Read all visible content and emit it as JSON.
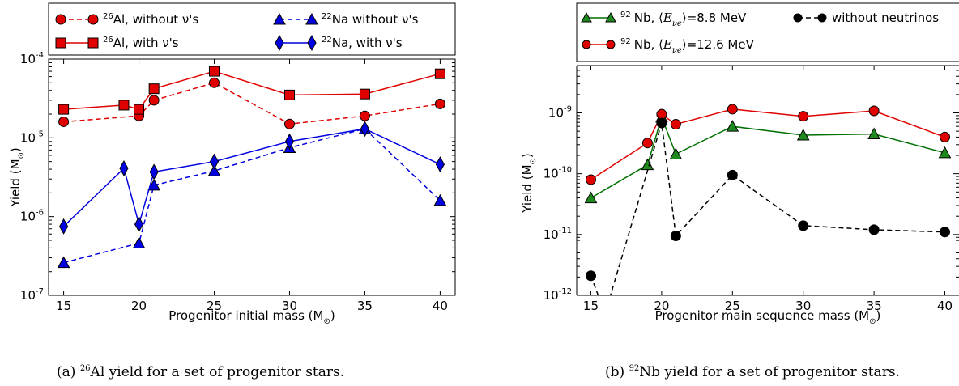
{
  "chart_data": [
    {
      "type": "line",
      "panel": "a",
      "xlabel": "Progenitor initial mass (M",
      "xlabel_sub": "⊙",
      "xlabel_close": ")",
      "ylabel": "Yield (M",
      "ylabel_sub": "⊙",
      "ylabel_close": ")",
      "yscale": "log",
      "xlim": [
        14,
        41
      ],
      "ylim": [
        1e-07,
        0.0001
      ],
      "xticks": [
        "15",
        "20",
        "25",
        "30",
        "35",
        "40"
      ],
      "yticks": [
        {
          "base": "10",
          "exp": "-7",
          "value": 1e-07
        },
        {
          "base": "10",
          "exp": "-6",
          "value": 1e-06
        },
        {
          "base": "10",
          "exp": "-5",
          "value": 1e-05
        },
        {
          "base": "10",
          "exp": "-4",
          "value": 0.0001
        }
      ],
      "legend_placement": "top",
      "series": [
        {
          "iso": "26",
          "name": "Al, without ν's",
          "color": "#e00000",
          "fill": "#e00000",
          "dash": true,
          "marker": "circle",
          "x": [
            15,
            20,
            21,
            25,
            30,
            35,
            40
          ],
          "y": [
            1.6e-05,
            1.9e-05,
            3e-05,
            5e-05,
            1.5e-05,
            1.9e-05,
            2.7e-05
          ]
        },
        {
          "iso": "26",
          "name": "Al, with ν's",
          "color": "#e00000",
          "fill": "#e00000",
          "dash": false,
          "marker": "square",
          "x": [
            15,
            19,
            20,
            21,
            25,
            30,
            35,
            40
          ],
          "y": [
            2.3e-05,
            2.6e-05,
            2.3e-05,
            4.2e-05,
            7e-05,
            3.5e-05,
            3.6e-05,
            6.5e-05
          ]
        },
        {
          "iso": "22",
          "name": "Na without ν's",
          "color": "#0000e0",
          "fill": "#0000e0",
          "dash": true,
          "marker": "triangle",
          "x": [
            15,
            20,
            21,
            25,
            30,
            35,
            40
          ],
          "y": [
            2.6e-07,
            4.6e-07,
            2.5e-06,
            3.8e-06,
            7.5e-06,
            1.3e-05,
            1.6e-06
          ]
        },
        {
          "iso": "22",
          "name": "Na, with ν's",
          "color": "#0000e0",
          "fill": "#0000e0",
          "dash": false,
          "marker": "diamond",
          "x": [
            15,
            19,
            20,
            21,
            25,
            30,
            35,
            40
          ],
          "y": [
            7.5e-07,
            4.1e-06,
            8e-07,
            3.7e-06,
            5e-06,
            9e-06,
            1.3e-05,
            4.6e-06
          ]
        }
      ],
      "caption_prefix": "(a) ",
      "caption_sup": "26",
      "caption_text": "Al yield for a set of progenitor stars."
    },
    {
      "type": "line",
      "panel": "b",
      "xlabel": "Progenitor main sequence mass (M",
      "xlabel_sub": "⊙",
      "xlabel_close": ")",
      "ylabel": "Yield (M",
      "ylabel_sub": "⊙",
      "ylabel_close": ")",
      "yscale": "log",
      "xlim": [
        14,
        41
      ],
      "ylim": [
        1e-12,
        6e-09
      ],
      "xticks": [
        "15",
        "20",
        "25",
        "30",
        "35",
        "40"
      ],
      "yticks": [
        {
          "base": "10",
          "exp": "-12",
          "value": 1e-12
        },
        {
          "base": "10",
          "exp": "-11",
          "value": 1e-11
        },
        {
          "base": "10",
          "exp": "-10",
          "value": 1e-10
        },
        {
          "base": "10",
          "exp": "-9",
          "value": 1e-09
        }
      ],
      "legend_placement": "top",
      "series": [
        {
          "iso": "92",
          "name_prefix": "Nb, ",
          "energy_value": "=8.8 MeV",
          "color": "#007000",
          "fill": "#1e8a1e",
          "dash": false,
          "marker": "triangle",
          "x": [
            15,
            19,
            20,
            21,
            25,
            30,
            35,
            40
          ],
          "y": [
            4e-11,
            1.4e-10,
            8.5e-10,
            2.1e-10,
            6e-10,
            4.3e-10,
            4.5e-10,
            2.2e-10
          ]
        },
        {
          "iso": "92",
          "name_prefix": "Nb, ",
          "energy_value": "=12.6 MeV",
          "color": "#e00000",
          "fill": "#e00000",
          "dash": false,
          "marker": "circle",
          "x": [
            15,
            19,
            20,
            21,
            25,
            30,
            35,
            40
          ],
          "y": [
            8e-11,
            3.2e-10,
            9.5e-10,
            6.5e-10,
            1.15e-09,
            8.8e-10,
            1.08e-09,
            4e-10
          ]
        },
        {
          "iso": "",
          "name": "without neutrinos",
          "color": "#000000",
          "fill": "#000000",
          "dash": true,
          "marker": "circle",
          "x": [
            15,
            16,
            20,
            21,
            25,
            30,
            35,
            40
          ],
          "y": [
            2.1e-12,
            5e-13,
            6.8e-10,
            9.5e-12,
            9.5e-11,
            1.4e-11,
            1.2e-11,
            1.1e-11
          ]
        }
      ],
      "energy_label": "E",
      "caption_prefix": "(b) ",
      "caption_sup": "92",
      "caption_text": "Nb yield for a set of progenitor stars."
    }
  ]
}
